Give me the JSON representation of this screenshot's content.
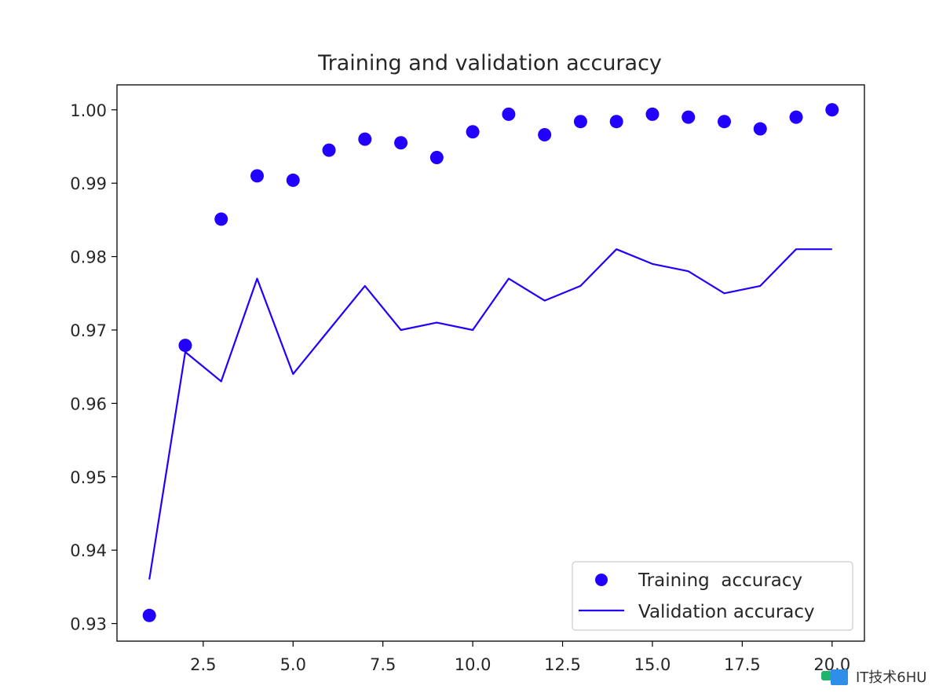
{
  "chart_data": {
    "type": "scatter",
    "title": "Training and validation accuracy",
    "xlim": [
      0.1,
      20.9
    ],
    "ylim": [
      0.9276,
      1.0034
    ],
    "xticks": [
      2.5,
      5.0,
      7.5,
      10.0,
      12.5,
      15.0,
      17.5,
      20.0
    ],
    "xtick_labels": [
      "2.5",
      "5.0",
      "7.5",
      "10.0",
      "12.5",
      "15.0",
      "17.5",
      "20.0"
    ],
    "yticks": [
      0.93,
      0.94,
      0.95,
      0.96,
      0.97,
      0.98,
      0.99,
      1.0
    ],
    "ytick_labels": [
      "0.93",
      "0.94",
      "0.95",
      "0.96",
      "0.97",
      "0.98",
      "0.99",
      "1.00"
    ],
    "grid": false,
    "legend_position": "bottom-right",
    "series": [
      {
        "name": "Training  accuracy",
        "style": "dots",
        "color": "#2200ff",
        "x": [
          1,
          2,
          3,
          4,
          5,
          6,
          7,
          8,
          9,
          10,
          11,
          12,
          13,
          14,
          15,
          16,
          17,
          18,
          19,
          20
        ],
        "values": [
          0.9311,
          0.9679,
          0.9851,
          0.991,
          0.9904,
          0.9945,
          0.996,
          0.9955,
          0.9935,
          0.997,
          0.9994,
          0.9966,
          0.9984,
          0.9984,
          0.9994,
          0.999,
          0.9984,
          0.9974,
          0.999,
          1.0
        ]
      },
      {
        "name": "Validation accuracy",
        "style": "line",
        "color": "#2200ff",
        "x": [
          1,
          2,
          3,
          4,
          5,
          6,
          7,
          8,
          9,
          10,
          11,
          12,
          13,
          14,
          15,
          16,
          17,
          18,
          19,
          20
        ],
        "values": [
          0.936,
          0.967,
          0.963,
          0.977,
          0.964,
          0.97,
          0.976,
          0.97,
          0.971,
          0.97,
          0.977,
          0.974,
          0.976,
          0.981,
          0.979,
          0.978,
          0.975,
          0.976,
          0.981,
          0.981
        ]
      }
    ]
  },
  "watermark": {
    "text": "IT技术6HU"
  }
}
